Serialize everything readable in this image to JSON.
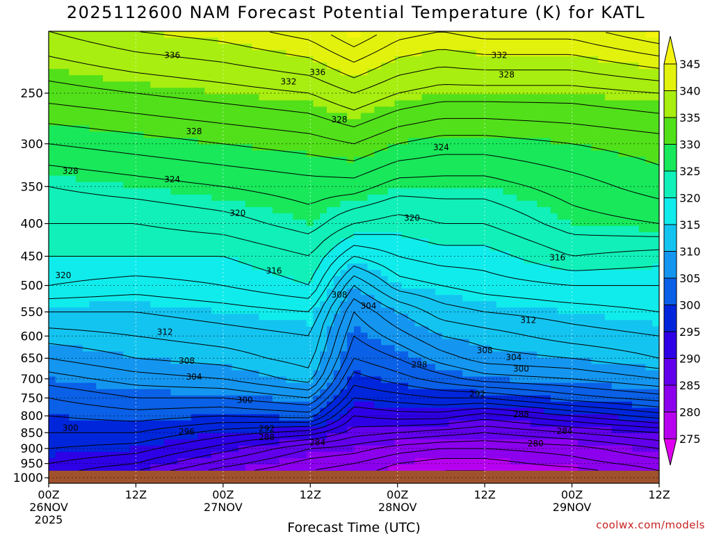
{
  "chart_data": {
    "type": "contour-heatmap",
    "title": "2025112600 NAM Forecast Potential Temperature (K) for KATL",
    "xlabel": "Forecast Time (UTC)",
    "ylabel": "",
    "y_axis": {
      "scale": "log-pressure",
      "inverted": true,
      "ylim": [
        200,
        1020
      ],
      "ticks": [
        250,
        300,
        350,
        400,
        450,
        500,
        550,
        600,
        650,
        700,
        750,
        800,
        850,
        900,
        950,
        1000
      ]
    },
    "x_axis": {
      "range_hours": [
        0,
        84
      ],
      "ticks": [
        {
          "hour": 0,
          "label": "00Z",
          "sub1": "26NOV",
          "sub2": "2025"
        },
        {
          "hour": 12,
          "label": "12Z",
          "sub1": "",
          "sub2": ""
        },
        {
          "hour": 24,
          "label": "00Z",
          "sub1": "27NOV",
          "sub2": ""
        },
        {
          "hour": 36,
          "label": "12Z",
          "sub1": "",
          "sub2": ""
        },
        {
          "hour": 48,
          "label": "00Z",
          "sub1": "28NOV",
          "sub2": ""
        },
        {
          "hour": 60,
          "label": "12Z",
          "sub1": "",
          "sub2": ""
        },
        {
          "hour": 72,
          "label": "00Z",
          "sub1": "29NOV",
          "sub2": ""
        },
        {
          "hour": 84,
          "label": "12Z",
          "sub1": "",
          "sub2": ""
        }
      ]
    },
    "colorbar": {
      "unit": "K",
      "levels": [
        275,
        280,
        285,
        290,
        295,
        300,
        305,
        310,
        315,
        320,
        325,
        330,
        335,
        340,
        345
      ],
      "colors": [
        "#e000f0",
        "#b800f0",
        "#8c00ee",
        "#6200ec",
        "#2e00e6",
        "#0026dc",
        "#0a60e6",
        "#1496f0",
        "#14c4f0",
        "#10ecec",
        "#10f0b8",
        "#18e85a",
        "#52e01a",
        "#a8ee10",
        "#e2f20c",
        "#f4f410"
      ]
    },
    "contour_interval_K": 2,
    "ground_pressure_hPa": 975,
    "ground_color": "#a0522d",
    "profile_times_hours": [
      0,
      12,
      24,
      36,
      42,
      48,
      54,
      60,
      72,
      84
    ],
    "profile_pressures_hPa": [
      200,
      250,
      300,
      350,
      400,
      450,
      500,
      550,
      600,
      650,
      700,
      750,
      800,
      850,
      900,
      950,
      975
    ],
    "theta_K": [
      [
        338,
        333,
        328,
        324,
        322,
        320,
        318,
        314,
        311,
        308,
        305,
        302,
        300,
        298,
        296,
        294,
        293
      ],
      [
        340,
        334,
        329,
        325,
        322,
        320,
        317,
        314,
        312,
        310,
        307,
        304,
        301,
        298,
        295,
        292,
        290
      ],
      [
        341,
        335,
        330,
        326,
        323,
        320,
        318,
        315,
        313,
        311,
        308,
        304,
        300,
        295,
        291,
        287,
        285
      ],
      [
        343,
        336,
        331,
        327,
        325,
        322,
        320,
        316,
        314,
        313,
        311,
        306,
        301,
        293,
        286,
        283,
        282
      ],
      [
        346,
        338,
        332,
        327,
        322,
        316,
        310,
        306,
        304,
        302,
        299,
        296,
        292,
        289,
        285,
        282,
        281
      ],
      [
        343,
        336,
        330,
        325,
        321,
        318,
        315,
        310,
        307,
        304,
        301,
        297,
        293,
        288,
        283,
        280,
        279
      ],
      [
        342,
        335,
        329,
        325,
        322,
        319,
        316,
        313,
        310,
        307,
        303,
        298,
        293,
        287,
        282,
        279,
        278
      ],
      [
        343,
        335,
        329,
        325,
        322,
        319,
        317,
        314,
        311,
        309,
        305,
        298,
        291,
        286,
        282,
        279,
        278
      ],
      [
        343,
        335,
        330,
        327,
        325,
        322,
        318,
        315,
        313,
        310,
        306,
        301,
        294,
        288,
        283,
        281,
        279
      ],
      [
        346,
        336,
        331,
        329,
        326,
        321,
        318,
        316,
        314,
        312,
        308,
        303,
        297,
        290,
        286,
        283,
        282
      ]
    ],
    "contour_labels": [
      {
        "text": "336",
        "hour": 17,
        "p": 218
      },
      {
        "text": "336",
        "hour": 37,
        "p": 232
      },
      {
        "text": "332",
        "hour": 33,
        "p": 240
      },
      {
        "text": "332",
        "hour": 62,
        "p": 218
      },
      {
        "text": "328",
        "hour": 63,
        "p": 234
      },
      {
        "text": "328",
        "hour": 40,
        "p": 275
      },
      {
        "text": "328",
        "hour": 20,
        "p": 287
      },
      {
        "text": "328",
        "hour": 3,
        "p": 331
      },
      {
        "text": "324",
        "hour": 54,
        "p": 304
      },
      {
        "text": "324",
        "hour": 17,
        "p": 341
      },
      {
        "text": "320",
        "hour": 26,
        "p": 385
      },
      {
        "text": "320",
        "hour": 50,
        "p": 392
      },
      {
        "text": "320",
        "hour": 2,
        "p": 482
      },
      {
        "text": "316",
        "hour": 31,
        "p": 474
      },
      {
        "text": "316",
        "hour": 70,
        "p": 452
      },
      {
        "text": "312",
        "hour": 16,
        "p": 591
      },
      {
        "text": "312",
        "hour": 66,
        "p": 567
      },
      {
        "text": "308",
        "hour": 40,
        "p": 517
      },
      {
        "text": "308",
        "hour": 19,
        "p": 656
      },
      {
        "text": "308",
        "hour": 60,
        "p": 632
      },
      {
        "text": "304",
        "hour": 44,
        "p": 538
      },
      {
        "text": "304",
        "hour": 20,
        "p": 695
      },
      {
        "text": "304",
        "hour": 64,
        "p": 648
      },
      {
        "text": "300",
        "hour": 27,
        "p": 756
      },
      {
        "text": "300",
        "hour": 65,
        "p": 675
      },
      {
        "text": "300",
        "hour": 3,
        "p": 836
      },
      {
        "text": "298",
        "hour": 51,
        "p": 665
      },
      {
        "text": "296",
        "hour": 19,
        "p": 847
      },
      {
        "text": "292",
        "hour": 30,
        "p": 838
      },
      {
        "text": "292",
        "hour": 59,
        "p": 739
      },
      {
        "text": "288",
        "hour": 30,
        "p": 865
      },
      {
        "text": "288",
        "hour": 65,
        "p": 796
      },
      {
        "text": "284",
        "hour": 37,
        "p": 881
      },
      {
        "text": "284",
        "hour": 71,
        "p": 845
      },
      {
        "text": "280",
        "hour": 67,
        "p": 884
      }
    ]
  },
  "credit": "coolwx.com/models"
}
